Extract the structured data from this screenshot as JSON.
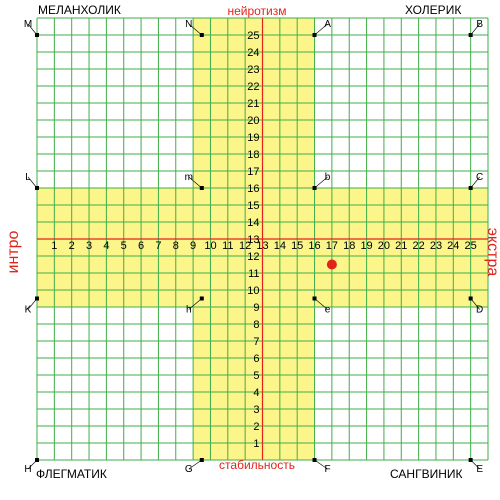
{
  "chart_data": {
    "type": "scatter",
    "grid": true,
    "xlim": [
      0,
      25
    ],
    "ylim": [
      0,
      25
    ],
    "x_ticks": [
      "1",
      "2",
      "3",
      "4",
      "5",
      "6",
      "7",
      "8",
      "9",
      "10",
      "11",
      "12",
      "13",
      "14",
      "15",
      "16",
      "17",
      "18",
      "19",
      "20",
      "21",
      "22",
      "23",
      "24",
      "25"
    ],
    "y_ticks": [
      "1",
      "2",
      "3",
      "4",
      "5",
      "6",
      "7",
      "8",
      "9",
      "10",
      "11",
      "12",
      "13",
      "14",
      "15",
      "16",
      "17",
      "18",
      "19",
      "20",
      "21",
      "22",
      "23",
      "24",
      "25"
    ],
    "quadrants": {
      "top_left": "МЕЛАНХОЛИК",
      "top_right": "ХОЛЕРИК",
      "bottom_left": "ФЛЕГМАТИК",
      "bottom_right": "САНГВИНИК"
    },
    "y_axis_top_label": "нейротизм",
    "y_axis_bottom_label": "стабильность",
    "x_axis_left_label": "интро",
    "x_axis_right_label": "экстра",
    "highlight_bands": [
      {
        "axis": "x",
        "range": [
          9,
          16
        ]
      },
      {
        "axis": "y",
        "range": [
          9,
          16
        ]
      }
    ],
    "colors": {
      "band": "#fbf58a",
      "grid": "#3fae49",
      "axis": "#e2231a",
      "point": "#e2231a",
      "text": "#000000"
    },
    "reference_points": [
      {
        "label": "M",
        "x": 0,
        "y": 25
      },
      {
        "label": "N",
        "x": 9.5,
        "y": 25
      },
      {
        "label": "A",
        "x": 16,
        "y": 25
      },
      {
        "label": "B",
        "x": 25,
        "y": 25
      },
      {
        "label": "L",
        "x": 0,
        "y": 16
      },
      {
        "label": "m",
        "x": 9.5,
        "y": 16
      },
      {
        "label": "b",
        "x": 16,
        "y": 16
      },
      {
        "label": "C",
        "x": 25,
        "y": 16
      },
      {
        "label": "K",
        "x": 0,
        "y": 9.5
      },
      {
        "label": "h",
        "x": 9.5,
        "y": 9.5
      },
      {
        "label": "e",
        "x": 16,
        "y": 9.5
      },
      {
        "label": "D",
        "x": 25,
        "y": 9.5
      },
      {
        "label": "H",
        "x": 0,
        "y": 0
      },
      {
        "label": "G",
        "x": 9.5,
        "y": 0
      },
      {
        "label": "F",
        "x": 16,
        "y": 0
      },
      {
        "label": "E",
        "x": 25,
        "y": 0
      }
    ],
    "data_point": {
      "x": 17,
      "y": 11.5
    }
  }
}
